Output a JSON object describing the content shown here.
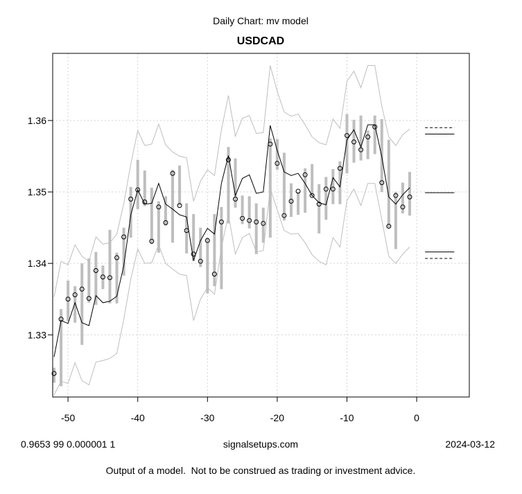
{
  "chart_data": {
    "type": "line",
    "title": "USDCAD",
    "subtitle": "Daily Chart: mv model",
    "xlabel": "",
    "ylabel": "",
    "xlim": [
      -52.2,
      7.55
    ],
    "ylim": [
      1.3213,
      1.3694
    ],
    "x_ticks": [
      -50,
      -40,
      -30,
      -20,
      -10,
      0
    ],
    "y_ticks": [
      1.33,
      1.34,
      1.35,
      1.36
    ],
    "grid": true,
    "x": [
      -52,
      -51,
      -50,
      -49,
      -48,
      -47,
      -46,
      -45,
      -44,
      -43,
      -42,
      -41,
      -40,
      -39,
      -38,
      -37,
      -36,
      -35,
      -34,
      -33,
      -32,
      -31,
      -30,
      -29,
      -28,
      -27,
      -26,
      -25,
      -24,
      -23,
      -22,
      -21,
      -20,
      -19,
      -18,
      -17,
      -16,
      -15,
      -14,
      -13,
      -12,
      -11,
      -10,
      -9,
      -8,
      -7,
      -6,
      -5,
      -4,
      -3,
      -2,
      -1
    ],
    "series": [
      {
        "name": "close",
        "style": "points",
        "values": [
          1.3246,
          1.3322,
          1.335,
          1.3356,
          1.3364,
          1.3351,
          1.339,
          1.3381,
          1.338,
          1.3408,
          1.3437,
          1.349,
          1.3503,
          1.3486,
          1.3431,
          1.3479,
          1.3457,
          1.3526,
          1.3481,
          1.3446,
          1.3413,
          1.3403,
          1.3432,
          1.3385,
          1.3458,
          1.3545,
          1.349,
          1.3463,
          1.346,
          1.3458,
          1.3456,
          1.3567,
          1.354,
          1.3467,
          1.3487,
          1.3501,
          1.3524,
          1.3495,
          1.3483,
          1.3504,
          1.3504,
          1.3533,
          1.3579,
          1.357,
          1.3559,
          1.3577,
          1.3591,
          1.3513,
          1.3452,
          1.3495,
          1.3479,
          1.3493
        ]
      },
      {
        "name": "range_high",
        "style": "bar",
        "values": [
          1.3254,
          1.3336,
          1.3376,
          1.3368,
          1.34,
          1.3407,
          1.3416,
          1.3397,
          1.3447,
          1.3415,
          1.345,
          1.3507,
          1.3545,
          1.353,
          1.3506,
          1.3487,
          1.3494,
          1.3531,
          1.3537,
          1.3484,
          1.3469,
          1.345,
          1.3436,
          1.3469,
          1.3479,
          1.3563,
          1.3547,
          1.3495,
          1.3494,
          1.3484,
          1.3478,
          1.3575,
          1.3574,
          1.3555,
          1.3512,
          1.35,
          1.3533,
          1.3539,
          1.3511,
          1.3521,
          1.3532,
          1.3543,
          1.3609,
          1.3601,
          1.3607,
          1.3586,
          1.3607,
          1.3602,
          1.3573,
          1.35,
          1.3513,
          1.3528
        ]
      },
      {
        "name": "range_low",
        "style": "bar",
        "values": [
          1.3233,
          1.3228,
          1.3319,
          1.3317,
          1.3286,
          1.3345,
          1.3342,
          1.3364,
          1.3344,
          1.3344,
          1.3383,
          1.3436,
          1.3476,
          1.348,
          1.3427,
          1.3415,
          1.3453,
          1.3429,
          1.3481,
          1.3414,
          1.3403,
          1.3395,
          1.3358,
          1.3368,
          1.3364,
          1.3456,
          1.3478,
          1.3455,
          1.3449,
          1.3413,
          1.3429,
          1.3436,
          1.3531,
          1.346,
          1.3465,
          1.3468,
          1.3471,
          1.3494,
          1.3442,
          1.3461,
          1.3483,
          1.3483,
          1.3526,
          1.3541,
          1.3544,
          1.3546,
          1.3553,
          1.35,
          1.345,
          1.342,
          1.347,
          1.3467
        ]
      },
      {
        "name": "model",
        "style": "line",
        "color": "#000000",
        "values": [
          1.3269,
          1.332,
          1.3316,
          1.3345,
          1.3317,
          1.3313,
          1.3355,
          1.3345,
          1.3347,
          1.3354,
          1.3397,
          1.3468,
          1.3503,
          1.3483,
          1.3484,
          1.3512,
          1.3483,
          1.3476,
          1.3468,
          1.3465,
          1.3404,
          1.3432,
          1.3449,
          1.3441,
          1.3512,
          1.3551,
          1.3495,
          1.3519,
          1.3524,
          1.3498,
          1.35,
          1.3593,
          1.3558,
          1.3528,
          1.3523,
          1.3526,
          1.3512,
          1.3495,
          1.3485,
          1.3482,
          1.352,
          1.3507,
          1.3573,
          1.3587,
          1.3563,
          1.3594,
          1.3594,
          1.3549,
          1.3493,
          1.3483,
          1.3496,
          1.3506
        ]
      },
      {
        "name": "upper_band",
        "style": "line",
        "color": "#bebebe",
        "values": [
          1.3353,
          1.3403,
          1.3398,
          1.3426,
          1.341,
          1.3403,
          1.3437,
          1.3427,
          1.3429,
          1.3441,
          1.3484,
          1.3539,
          1.3586,
          1.3565,
          1.3567,
          1.3595,
          1.3566,
          1.3556,
          1.355,
          1.3548,
          1.3487,
          1.3515,
          1.3531,
          1.3523,
          1.3587,
          1.3635,
          1.3578,
          1.3603,
          1.3607,
          1.3582,
          1.3583,
          1.3677,
          1.3641,
          1.3612,
          1.3606,
          1.3609,
          1.3594,
          1.3577,
          1.3569,
          1.3566,
          1.3602,
          1.3589,
          1.3655,
          1.3669,
          1.3646,
          1.3677,
          1.3677,
          1.362,
          1.3577,
          1.3565,
          1.358,
          1.3588
        ]
      },
      {
        "name": "lower_band",
        "style": "line",
        "color": "#bebebe",
        "values": [
          1.3216,
          1.3235,
          1.3232,
          1.3261,
          1.3236,
          1.323,
          1.3262,
          1.3264,
          1.3267,
          1.3274,
          1.3322,
          1.3378,
          1.342,
          1.34,
          1.3401,
          1.3426,
          1.34,
          1.3392,
          1.3385,
          1.3383,
          1.332,
          1.335,
          1.3366,
          1.3357,
          1.3422,
          1.3468,
          1.3413,
          1.3436,
          1.3442,
          1.3416,
          1.3418,
          1.3505,
          1.3475,
          1.3446,
          1.3441,
          1.3442,
          1.3429,
          1.3412,
          1.3403,
          1.3398,
          1.3436,
          1.3423,
          1.3488,
          1.3504,
          1.3481,
          1.3512,
          1.3512,
          1.3461,
          1.341,
          1.34,
          1.3413,
          1.3423
        ]
      }
    ],
    "forecast_levels": [
      {
        "name": "upper_outer",
        "value": 1.359,
        "dash": true,
        "x_range": [
          1.2,
          5.4
        ]
      },
      {
        "name": "upper_inner",
        "value": 1.3581,
        "dash": false,
        "x_range": [
          1.2,
          5.4
        ]
      },
      {
        "name": "center",
        "value": 1.3499,
        "dash": false,
        "x_range": [
          1.2,
          5.4
        ]
      },
      {
        "name": "lower_inner",
        "value": 1.3416,
        "dash": false,
        "x_range": [
          1.2,
          5.4
        ]
      },
      {
        "name": "lower_outer",
        "value": 1.3407,
        "dash": true,
        "x_range": [
          1.2,
          5.4
        ]
      }
    ]
  },
  "footer": {
    "params": "0.9653 99 0.000001 1",
    "site": "signalsetups.com",
    "date": "2024-03-12",
    "disclaimer": "Output of a model.  Not to be construed as trading or investment advice."
  }
}
